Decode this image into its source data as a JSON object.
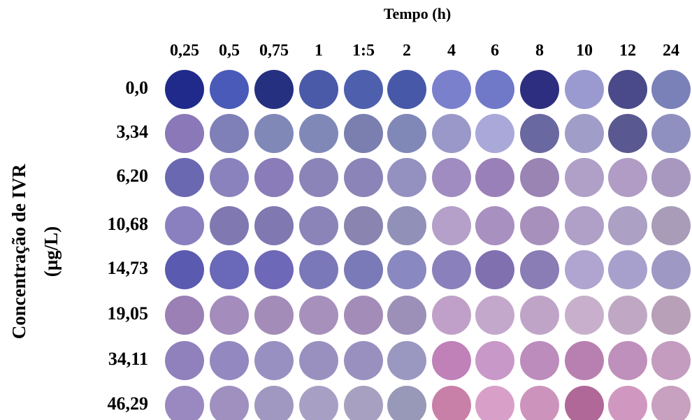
{
  "header": {
    "title": "Tempo (h)",
    "columns": [
      "0,25",
      "0,5",
      "0,75",
      "1",
      "1:5",
      "2",
      "4",
      "6",
      "8",
      "10",
      "12",
      "24"
    ]
  },
  "y_axis": {
    "title_lines": [
      "Concentração de IVR",
      "(µg/L)"
    ]
  },
  "rows": [
    {
      "label": "0,0",
      "colors": [
        "#1f2a8a",
        "#4a5ab8",
        "#263080",
        "#4a5aa8",
        "#4e5fae",
        "#4858a8",
        "#7a80cc",
        "#7078c8",
        "#2e2e80",
        "#9a9ad0",
        "#4a4a8a",
        "#7a80b8"
      ]
    },
    {
      "label": "3,34",
      "colors": [
        "#8a78b8",
        "#7f80b8",
        "#8088b8",
        "#8088b8",
        "#7a7fb0",
        "#8088b8",
        "#9a98c8",
        "#aaa8d8",
        "#6a68a0",
        "#a09ec8",
        "#5a5890",
        "#9090c0"
      ]
    },
    {
      "label": "6,20",
      "colors": [
        "#6a68b0",
        "#8a82bc",
        "#8a7cb8",
        "#8a84b8",
        "#8a84b8",
        "#9490c0",
        "#a08cc0",
        "#9a80b8",
        "#9a84b4",
        "#b0a0c8",
        "#b09cc4",
        "#a898c0"
      ]
    },
    {
      "label": "10,68",
      "colors": [
        "#8a80c0",
        "#8078b0",
        "#8078b0",
        "#8a84b8",
        "#8a84b0",
        "#9090b8",
        "#b4a0c8",
        "#a890c0",
        "#a890bc",
        "#b0a0c8",
        "#aca0c4",
        "#a89cb8"
      ]
    },
    {
      "label": "14,73",
      "colors": [
        "#5a5ab0",
        "#6a68b8",
        "#6e68b8",
        "#7a78b8",
        "#7a7ab8",
        "#8a88c0",
        "#8a80bc",
        "#8070b0",
        "#8a7cb4",
        "#b0a4d0",
        "#a8a0cc",
        "#9e98c4"
      ]
    },
    {
      "label": "19,05",
      "colors": [
        "#9a80b4",
        "#a48cbc",
        "#a48cb8",
        "#a890bc",
        "#a48cb8",
        "#9c90b8",
        "#c0a0c8",
        "#c4a8cc",
        "#c0a4c8",
        "#c8b0cc",
        "#c0a8c4",
        "#b8a0b8"
      ]
    },
    {
      "label": "34,11",
      "colors": [
        "#9080bc",
        "#9488c0",
        "#9890c0",
        "#9a90c0",
        "#9a90c0",
        "#9a98c0",
        "#c080b8",
        "#c898c8",
        "#bc8cbc",
        "#b880b0",
        "#c090bc",
        "#c49cc0"
      ]
    },
    {
      "label": "46,29",
      "colors": [
        "#9a88c0",
        "#a090c0",
        "#a098c0",
        "#a8a0c4",
        "#a8a0c0",
        "#9898b8",
        "#c880a8",
        "#d8a0c8",
        "#cc94bc",
        "#b06898",
        "#d098c0",
        "#c8a0c0"
      ]
    }
  ]
}
